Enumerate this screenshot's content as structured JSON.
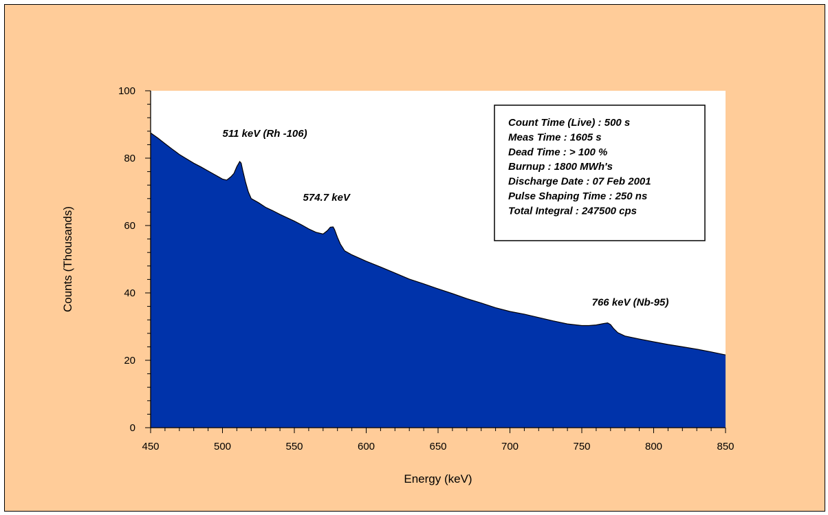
{
  "colors": {
    "background": "#ffcc99",
    "plot_area": "#ffffff",
    "fill": "#0033aa",
    "outline": "#000000"
  },
  "chart_data": {
    "type": "area",
    "title": "",
    "xlabel": "Energy (keV)",
    "ylabel": "Counts  (Thousands)",
    "xlim": [
      450,
      850
    ],
    "ylim": [
      0,
      100
    ],
    "xticks": [
      450,
      500,
      550,
      600,
      650,
      700,
      750,
      800,
      850
    ],
    "yticks": [
      0,
      20,
      40,
      60,
      80,
      100
    ],
    "grid": false,
    "series": [
      {
        "x": [
          450,
          455,
          460,
          465,
          470,
          475,
          480,
          485,
          490,
          495,
          500,
          503,
          506,
          508,
          510,
          512,
          513,
          514,
          516,
          518,
          520,
          525,
          530,
          535,
          540,
          545,
          550,
          555,
          560,
          565,
          570,
          573,
          575,
          577,
          578,
          580,
          582,
          585,
          590,
          600,
          610,
          620,
          630,
          640,
          650,
          660,
          670,
          680,
          690,
          700,
          710,
          720,
          730,
          740,
          750,
          755,
          760,
          765,
          768,
          770,
          772,
          775,
          780,
          790,
          800,
          810,
          820,
          830,
          840,
          850
        ],
        "y": [
          87.5,
          86,
          84.3,
          82.7,
          81.1,
          79.8,
          78.5,
          77.4,
          76.2,
          75,
          73.8,
          73.5,
          74.5,
          75.5,
          77.5,
          79,
          78.5,
          76.5,
          73,
          70,
          68,
          66.8,
          65.4,
          64.4,
          63.3,
          62.3,
          61.3,
          60.2,
          59,
          58,
          57.5,
          58.5,
          59.5,
          59.6,
          58.8,
          56.5,
          54.5,
          52.5,
          51.3,
          49.4,
          47.7,
          45.9,
          44.1,
          42.7,
          41.2,
          39.8,
          38.3,
          37,
          35.6,
          34.5,
          33.7,
          32.7,
          31.7,
          30.8,
          30.3,
          30.3,
          30.5,
          30.9,
          31.1,
          30.6,
          29.5,
          28.2,
          27.2,
          26.3,
          25.5,
          24.7,
          24,
          23.3,
          22.5,
          21.6
        ]
      }
    ],
    "annotations": [
      {
        "text": "511 keV (Rh -106)",
        "x": 500,
        "y": 86.3
      },
      {
        "text": "574.7 keV",
        "x": 556,
        "y": 67.3
      },
      {
        "text": "766 keV (Nb-95)",
        "x": 757,
        "y": 36.2
      }
    ],
    "info_box": [
      "Count Time (Live) : 500 s",
      "Meas Time  : 1605 s",
      "Dead Time : > 100 %",
      "Burnup : 1800 MWh's",
      "Discharge  Date : 07 Feb 2001",
      "Pulse Shaping Time : 250 ns",
      "Total Integral : 247500 cps"
    ]
  }
}
